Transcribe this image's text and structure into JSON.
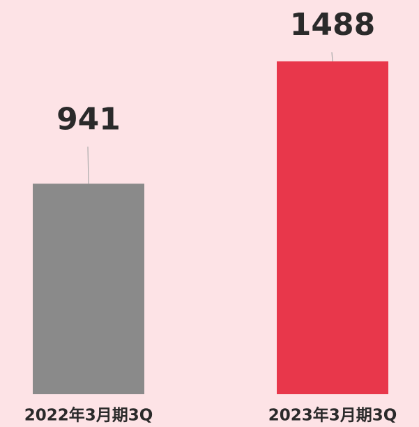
{
  "chart_data": {
    "type": "bar",
    "categories": [
      "2022年3月期3Q",
      "2023年3月期3Q"
    ],
    "values": [
      941,
      1488
    ],
    "colors": [
      "#8a8a8a",
      "#e8374b"
    ]
  }
}
